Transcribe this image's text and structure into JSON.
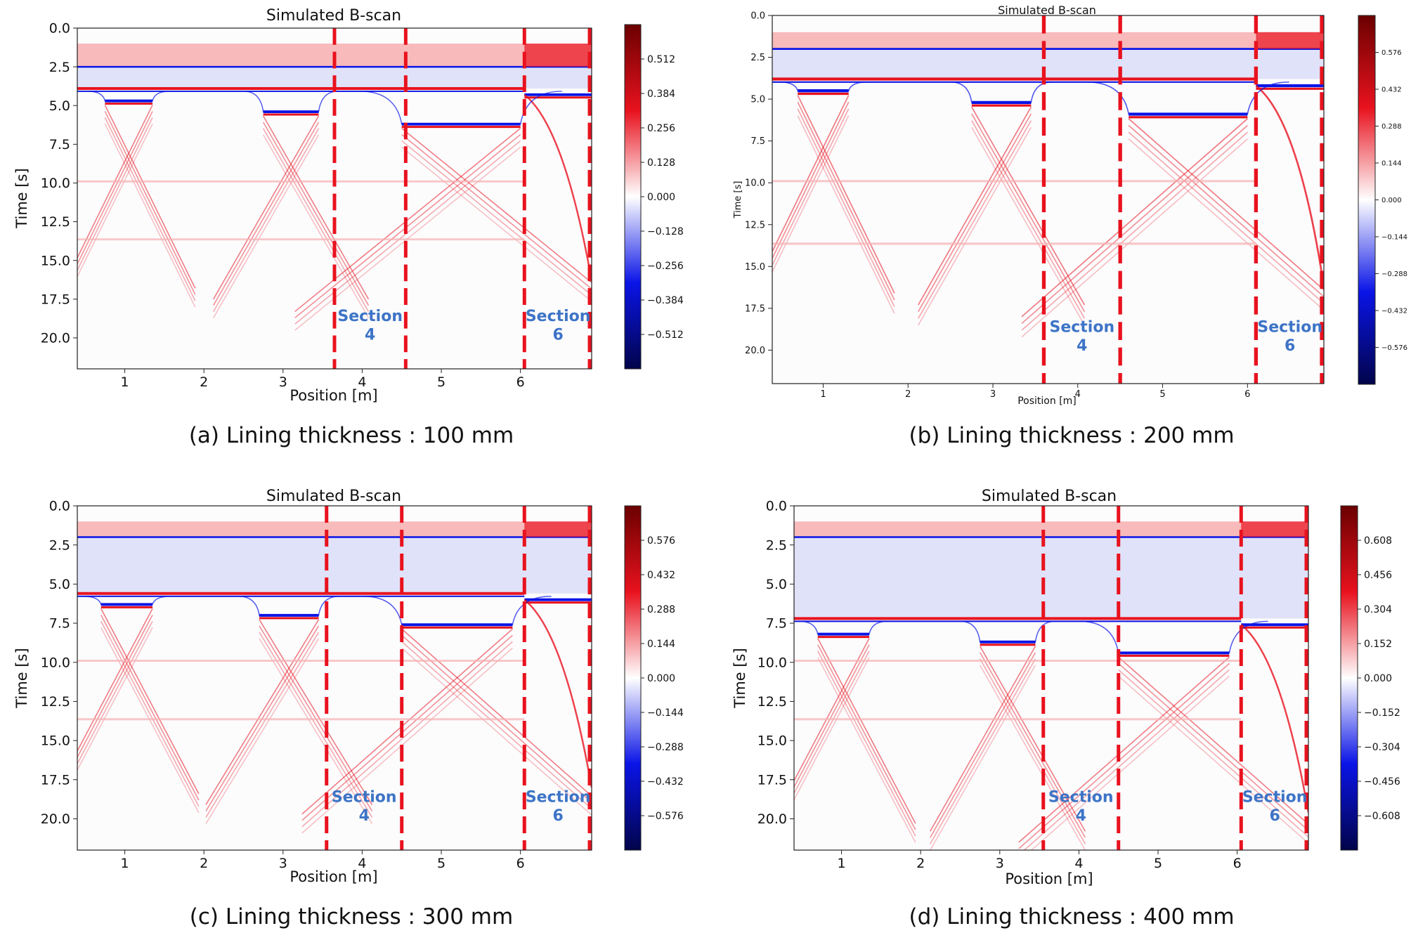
{
  "chart_data": [
    {
      "type": "heatmap",
      "title": "Simulated B-scan",
      "caption": "(a) Lining thickness : 100 mm",
      "xlabel": "Position [m]",
      "ylabel": "Time [s]",
      "xlim": [
        0.4,
        6.9
      ],
      "ylim": [
        22.0,
        0.0
      ],
      "xticks": [
        "1",
        "2",
        "3",
        "4",
        "5",
        "6"
      ],
      "yticks": [
        "0.0",
        "2.5",
        "5.0",
        "7.5",
        "10.0",
        "12.5",
        "15.0",
        "17.5",
        "20.0"
      ],
      "colorbar": {
        "min": -0.64,
        "max": 0.64,
        "ticks": [
          "0.512",
          "0.384",
          "0.256",
          "0.128",
          "0.000",
          "−0.128",
          "−0.256",
          "−0.384",
          "−0.512"
        ]
      },
      "sections": [
        {
          "line1": "Section",
          "line2": "4",
          "x_from": 3.65,
          "x_to": 4.55
        },
        {
          "line1": "Section",
          "line2": "6",
          "x_from": 6.05,
          "x_to": 6.9
        }
      ],
      "divider_positions": [
        3.65,
        4.55,
        6.05,
        6.9
      ],
      "layers": {
        "surface_top": 1.0,
        "surface_mid": 2.5,
        "lining_interface": 3.9,
        "rebar_near_interface": 4.3
      },
      "cavities": [
        {
          "x1": 0.75,
          "x2": 1.35,
          "t": 4.7
        },
        {
          "x1": 2.75,
          "x2": 3.45,
          "t": 5.4
        },
        {
          "x1": 4.5,
          "x2": 6.0,
          "t": 6.2
        }
      ]
    },
    {
      "type": "heatmap",
      "title": "Simulated B-scan",
      "caption": "(b) Lining thickness : 200 mm",
      "xlabel": "Position [m]",
      "ylabel": "Time [s]",
      "xlim": [
        0.4,
        6.9
      ],
      "ylim": [
        22.0,
        0.0
      ],
      "xticks": [
        "1",
        "2",
        "3",
        "4",
        "5",
        "6"
      ],
      "yticks": [
        "0.0",
        "2.5",
        "5.0",
        "7.5",
        "10.0",
        "12.5",
        "15.0",
        "17.5",
        "20.0"
      ],
      "colorbar": {
        "min": -0.72,
        "max": 0.72,
        "ticks": [
          "0.576",
          "0.432",
          "0.288",
          "0.144",
          "0.000",
          "−0.144",
          "−0.288",
          "−0.432",
          "−0.576"
        ]
      },
      "sections": [
        {
          "line1": "Section",
          "line2": "4",
          "x_from": 3.6,
          "x_to": 4.5
        },
        {
          "line1": "Section",
          "line2": "6",
          "x_from": 6.1,
          "x_to": 6.9
        }
      ],
      "divider_positions": [
        3.6,
        4.5,
        6.1,
        6.9
      ],
      "layers": {
        "surface_top": 1.0,
        "surface_mid": 2.0,
        "lining_interface": 3.8,
        "rebar_near_interface": 4.2
      },
      "cavities": [
        {
          "x1": 0.7,
          "x2": 1.3,
          "t": 4.5
        },
        {
          "x1": 2.75,
          "x2": 3.45,
          "t": 5.2
        },
        {
          "x1": 4.6,
          "x2": 6.0,
          "t": 5.9
        }
      ]
    },
    {
      "type": "heatmap",
      "title": "Simulated B-scan",
      "caption": "(c) Lining thickness : 300 mm",
      "xlabel": "Position [m]",
      "ylabel": "Time [s]",
      "xlim": [
        0.4,
        6.9
      ],
      "ylim": [
        22.0,
        0.0
      ],
      "xticks": [
        "1",
        "2",
        "3",
        "4",
        "5",
        "6"
      ],
      "yticks": [
        "0.0",
        "2.5",
        "5.0",
        "7.5",
        "10.0",
        "12.5",
        "15.0",
        "17.5",
        "20.0"
      ],
      "colorbar": {
        "min": -0.72,
        "max": 0.72,
        "ticks": [
          "0.576",
          "0.432",
          "0.288",
          "0.144",
          "0.000",
          "−0.144",
          "−0.288",
          "−0.432",
          "−0.576"
        ]
      },
      "sections": [
        {
          "line1": "Section",
          "line2": "4",
          "x_from": 3.55,
          "x_to": 4.5
        },
        {
          "line1": "Section",
          "line2": "6",
          "x_from": 6.05,
          "x_to": 6.9
        }
      ],
      "divider_positions": [
        3.55,
        4.5,
        6.05,
        6.9
      ],
      "layers": {
        "surface_top": 1.0,
        "surface_mid": 2.0,
        "lining_interface": 5.6,
        "rebar_near_interface": 6.0
      },
      "cavities": [
        {
          "x1": 0.7,
          "x2": 1.35,
          "t": 6.3
        },
        {
          "x1": 2.7,
          "x2": 3.45,
          "t": 7.0
        },
        {
          "x1": 4.5,
          "x2": 5.9,
          "t": 7.6
        }
      ]
    },
    {
      "type": "heatmap",
      "title": "Simulated B-scan",
      "caption": "(d) Lining thickness : 400 mm",
      "xlabel": "Position [m]",
      "ylabel": "Time [s]",
      "xlim": [
        0.4,
        6.9
      ],
      "ylim": [
        22.0,
        0.0
      ],
      "xticks": [
        "1",
        "2",
        "3",
        "4",
        "5",
        "6"
      ],
      "yticks": [
        "0.0",
        "2.5",
        "5.0",
        "7.5",
        "10.0",
        "12.5",
        "15.0",
        "17.5",
        "20.0"
      ],
      "colorbar": {
        "min": -0.76,
        "max": 0.76,
        "ticks": [
          "0.608",
          "0.456",
          "0.304",
          "0.152",
          "0.000",
          "−0.152",
          "−0.304",
          "−0.456",
          "−0.608"
        ]
      },
      "sections": [
        {
          "line1": "Section",
          "line2": "4",
          "x_from": 3.55,
          "x_to": 4.5
        },
        {
          "line1": "Section",
          "line2": "6",
          "x_from": 6.05,
          "x_to": 6.9
        }
      ],
      "divider_positions": [
        3.55,
        4.5,
        6.05,
        6.9
      ],
      "layers": {
        "surface_top": 1.0,
        "surface_mid": 2.0,
        "lining_interface": 7.2,
        "rebar_near_interface": 7.6
      },
      "cavities": [
        {
          "x1": 0.7,
          "x2": 1.35,
          "t": 8.2
        },
        {
          "x1": 2.75,
          "x2": 3.45,
          "t": 8.7
        },
        {
          "x1": 4.5,
          "x2": 5.9,
          "t": 9.4
        }
      ]
    }
  ],
  "colors": {
    "positive": "#e8121e",
    "negative": "#0a14e6",
    "pos_light": "#f7b2b4",
    "neg_light": "#c8ccf6",
    "section_divider": "#e8121e",
    "section_label": "#3d74c6",
    "cbar_top": "#6b0000",
    "cbar_bottom": "#02044a"
  }
}
